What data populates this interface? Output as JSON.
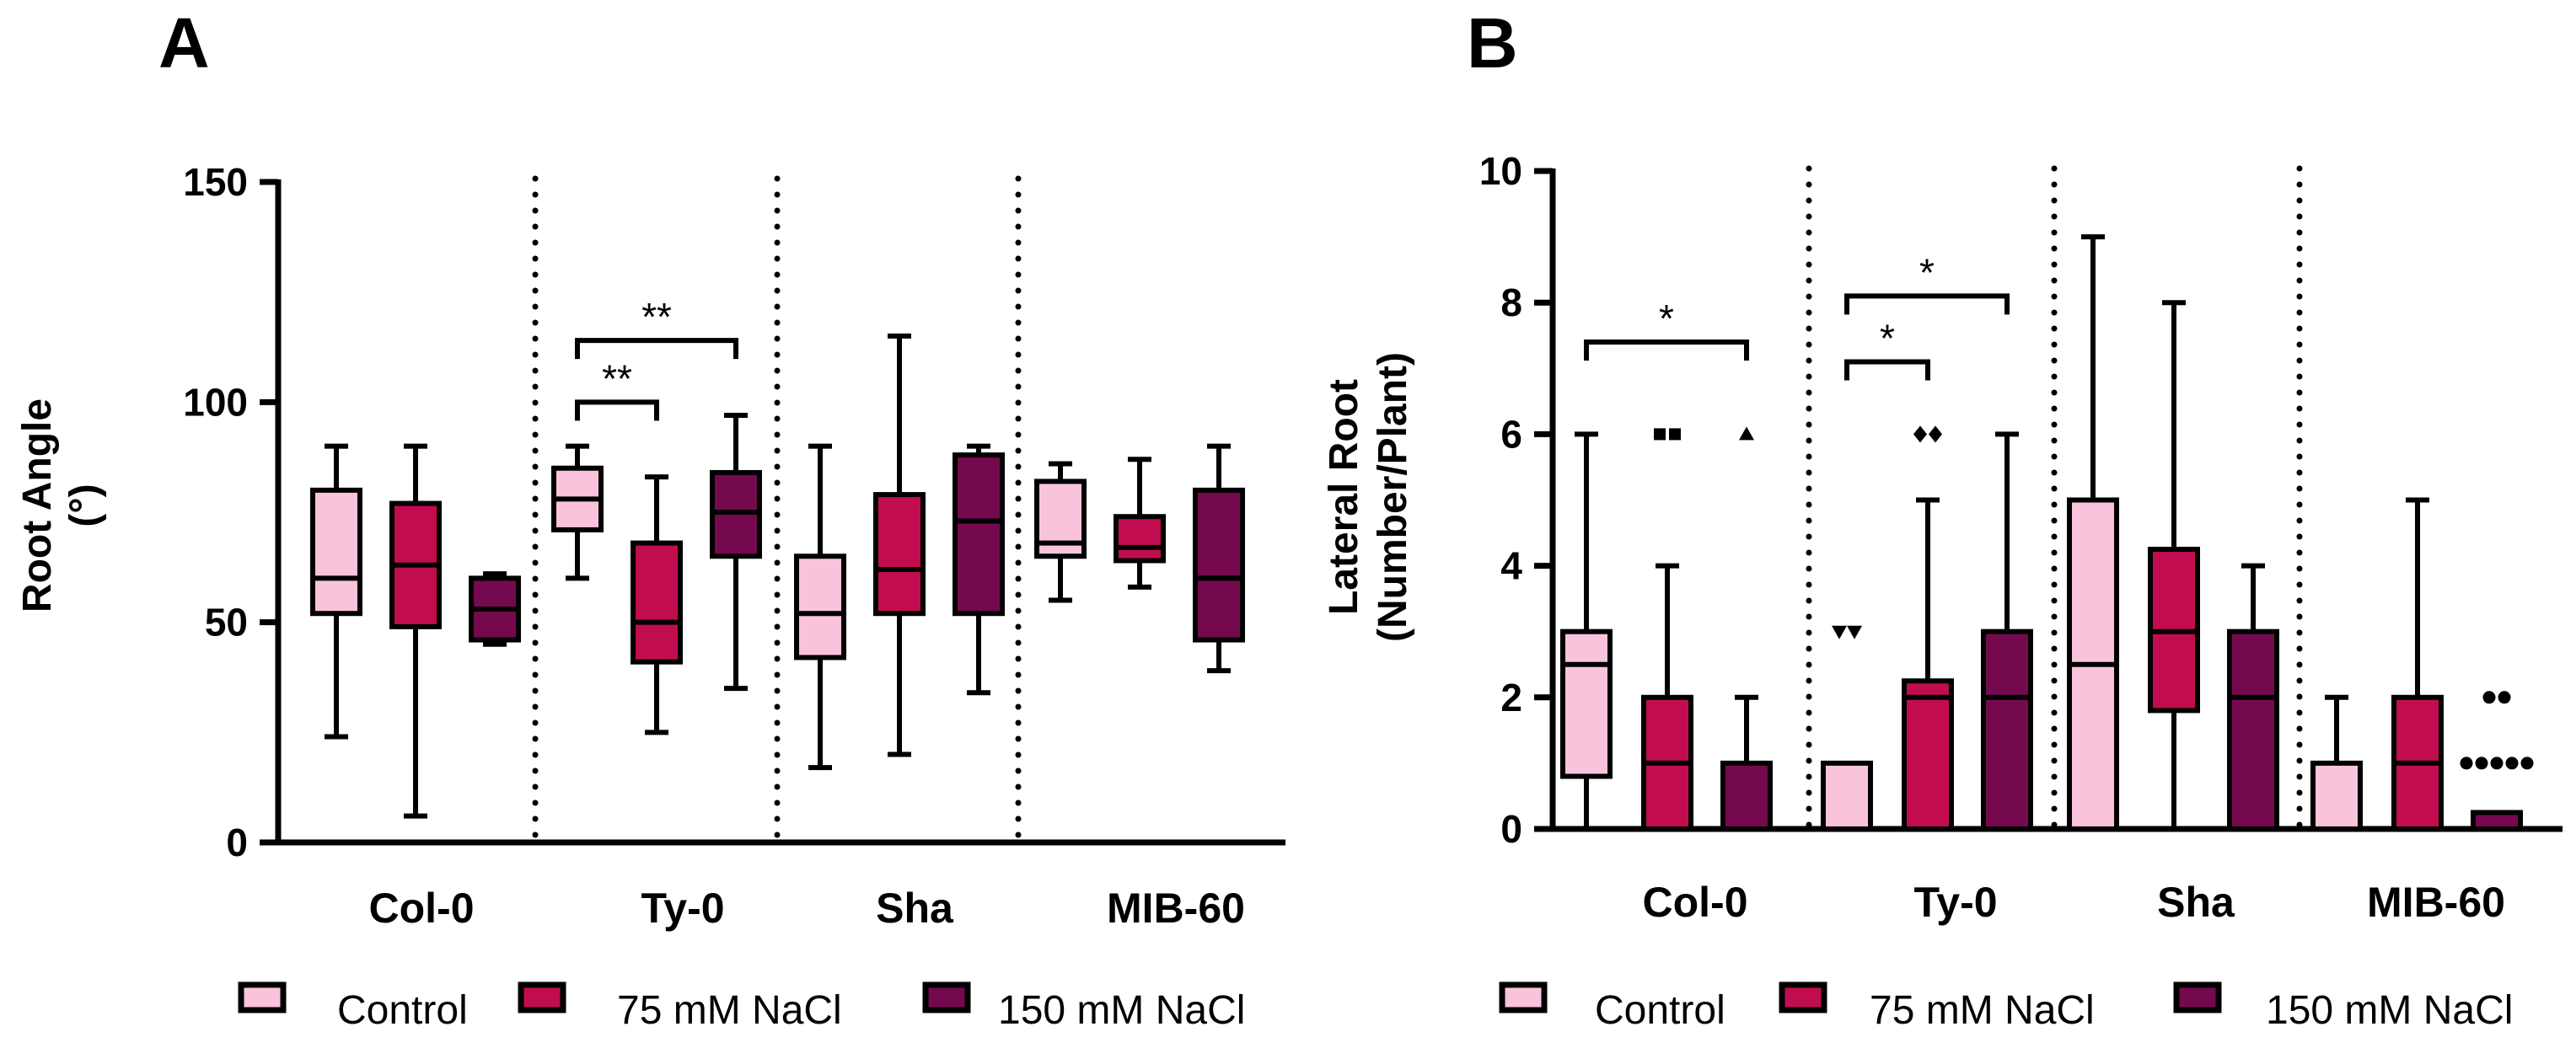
{
  "colors": {
    "control": "#F9C3DC",
    "nacl75": "#C10D4F",
    "nacl150": "#75094E",
    "stroke": "#000000"
  },
  "chart_data": [
    {
      "type": "box",
      "panel_label": "A",
      "ylabel_line1": "Root  Angle",
      "ylabel_line2": "(°)",
      "xlabel": "",
      "ylim": [
        0,
        150
      ],
      "yticks": [
        "0",
        "50",
        "100",
        "150"
      ],
      "ytick_values": [
        0,
        50,
        100,
        150
      ],
      "categories": [
        "Col-0",
        "Ty-0",
        "Sha",
        "MIB-60"
      ],
      "series": [
        {
          "name": "Control",
          "color_key": "control",
          "boxes": [
            {
              "min": 24,
              "q1": 52,
              "median": 60,
              "q3": 80,
              "max": 90
            },
            {
              "min": 60,
              "q1": 71,
              "median": 78,
              "q3": 85,
              "max": 90
            },
            {
              "min": 17,
              "q1": 42,
              "median": 52,
              "q3": 65,
              "max": 90
            },
            {
              "min": 55,
              "q1": 65,
              "median": 68,
              "q3": 82,
              "max": 86
            }
          ]
        },
        {
          "name": "75 mM NaCl",
          "color_key": "nacl75",
          "boxes": [
            {
              "min": 6,
              "q1": 49,
              "median": 63,
              "q3": 77,
              "max": 90
            },
            {
              "min": 25,
              "q1": 41,
              "median": 50,
              "q3": 68,
              "max": 83
            },
            {
              "min": 20,
              "q1": 52,
              "median": 62,
              "q3": 79,
              "max": 115
            },
            {
              "min": 58,
              "q1": 64,
              "median": 67,
              "q3": 74,
              "max": 87
            }
          ]
        },
        {
          "name": "150 mM NaCl",
          "color_key": "nacl150",
          "boxes": [
            {
              "min": 45,
              "q1": 46,
              "median": 53,
              "q3": 60,
              "max": 61
            },
            {
              "min": 35,
              "q1": 65,
              "median": 75,
              "q3": 84,
              "max": 97
            },
            {
              "min": 34,
              "q1": 52,
              "median": 73,
              "q3": 88,
              "max": 90
            },
            {
              "min": 39,
              "q1": 46,
              "median": 60,
              "q3": 80,
              "max": 90
            }
          ]
        }
      ],
      "outliers": [],
      "significance": [
        {
          "label": "**",
          "group": 1,
          "from_series": 0,
          "to_series": 1,
          "level": 100
        },
        {
          "label": "**",
          "group": 1,
          "from_series": 0,
          "to_series": 2,
          "level": 114
        }
      ],
      "separators": true
    },
    {
      "type": "box",
      "panel_label": "B",
      "ylabel_line1": "Lateral Root",
      "ylabel_line2": "(Number/Plant)",
      "xlabel": "",
      "ylim": [
        0,
        10
      ],
      "yticks": [
        "0",
        "2",
        "4",
        "6",
        "8",
        "10"
      ],
      "ytick_values": [
        0,
        2,
        4,
        6,
        8,
        10
      ],
      "categories": [
        "Col-0",
        "Ty-0",
        "Sha",
        "MIB-60"
      ],
      "series": [
        {
          "name": "Control",
          "color_key": "control",
          "boxes": [
            {
              "min": 0,
              "q1": 0.8,
              "median": 2.5,
              "q3": 3.0,
              "max": 6
            },
            {
              "min": 0,
              "q1": 0,
              "median": 0,
              "q3": 1.0,
              "max": 1.0
            },
            {
              "min": 0,
              "q1": 0,
              "median": 2.5,
              "q3": 5.0,
              "max": 9
            },
            {
              "min": 0,
              "q1": 0,
              "median": 0,
              "q3": 1.0,
              "max": 2
            }
          ]
        },
        {
          "name": "75 mM NaCl",
          "color_key": "nacl75",
          "boxes": [
            {
              "min": 0,
              "q1": 0,
              "median": 1,
              "q3": 2.0,
              "max": 4
            },
            {
              "min": 0,
              "q1": 0,
              "median": 2.0,
              "q3": 2.25,
              "max": 5
            },
            {
              "min": 0,
              "q1": 1.8,
              "median": 3.0,
              "q3": 4.25,
              "max": 8
            },
            {
              "min": 0,
              "q1": 0,
              "median": 1,
              "q3": 2.0,
              "max": 5
            }
          ]
        },
        {
          "name": "150 mM NaCl",
          "color_key": "nacl150",
          "boxes": [
            {
              "min": 0,
              "q1": 0,
              "median": 0,
              "q3": 1.0,
              "max": 2
            },
            {
              "min": 0,
              "q1": 0,
              "median": 2.0,
              "q3": 3.0,
              "max": 6
            },
            {
              "min": 0,
              "q1": 0,
              "median": 2.0,
              "q3": 3.0,
              "max": 4
            },
            {
              "min": 0,
              "q1": 0,
              "median": 0.25,
              "q3": 0.25,
              "max": 0.25
            }
          ]
        }
      ],
      "outliers": [
        {
          "group": 0,
          "series": 1,
          "marker": "square",
          "values": [
            6,
            6
          ]
        },
        {
          "group": 0,
          "series": 2,
          "marker": "triangle-up",
          "values": [
            6
          ]
        },
        {
          "group": 1,
          "series": 0,
          "marker": "triangle-down",
          "values": [
            3,
            3
          ]
        },
        {
          "group": 1,
          "series": 1,
          "marker": "diamond",
          "values": [
            6,
            6
          ]
        },
        {
          "group": 3,
          "series": 2,
          "marker": "circle",
          "values": [
            2,
            2,
            1,
            1,
            1,
            1,
            1
          ]
        }
      ],
      "significance": [
        {
          "label": "*",
          "group": 0,
          "from_series": 0,
          "to_series": 2,
          "level": 7.4
        },
        {
          "label": "*",
          "group": 1,
          "from_series": 0,
          "to_series": 1,
          "level": 7.1
        },
        {
          "label": "*",
          "group": 1,
          "from_series": 0,
          "to_series": 2,
          "level": 8.1
        }
      ],
      "separators": true
    }
  ],
  "legend_labels": [
    "Control",
    "75 mM NaCl",
    "150 mM NaCl"
  ]
}
